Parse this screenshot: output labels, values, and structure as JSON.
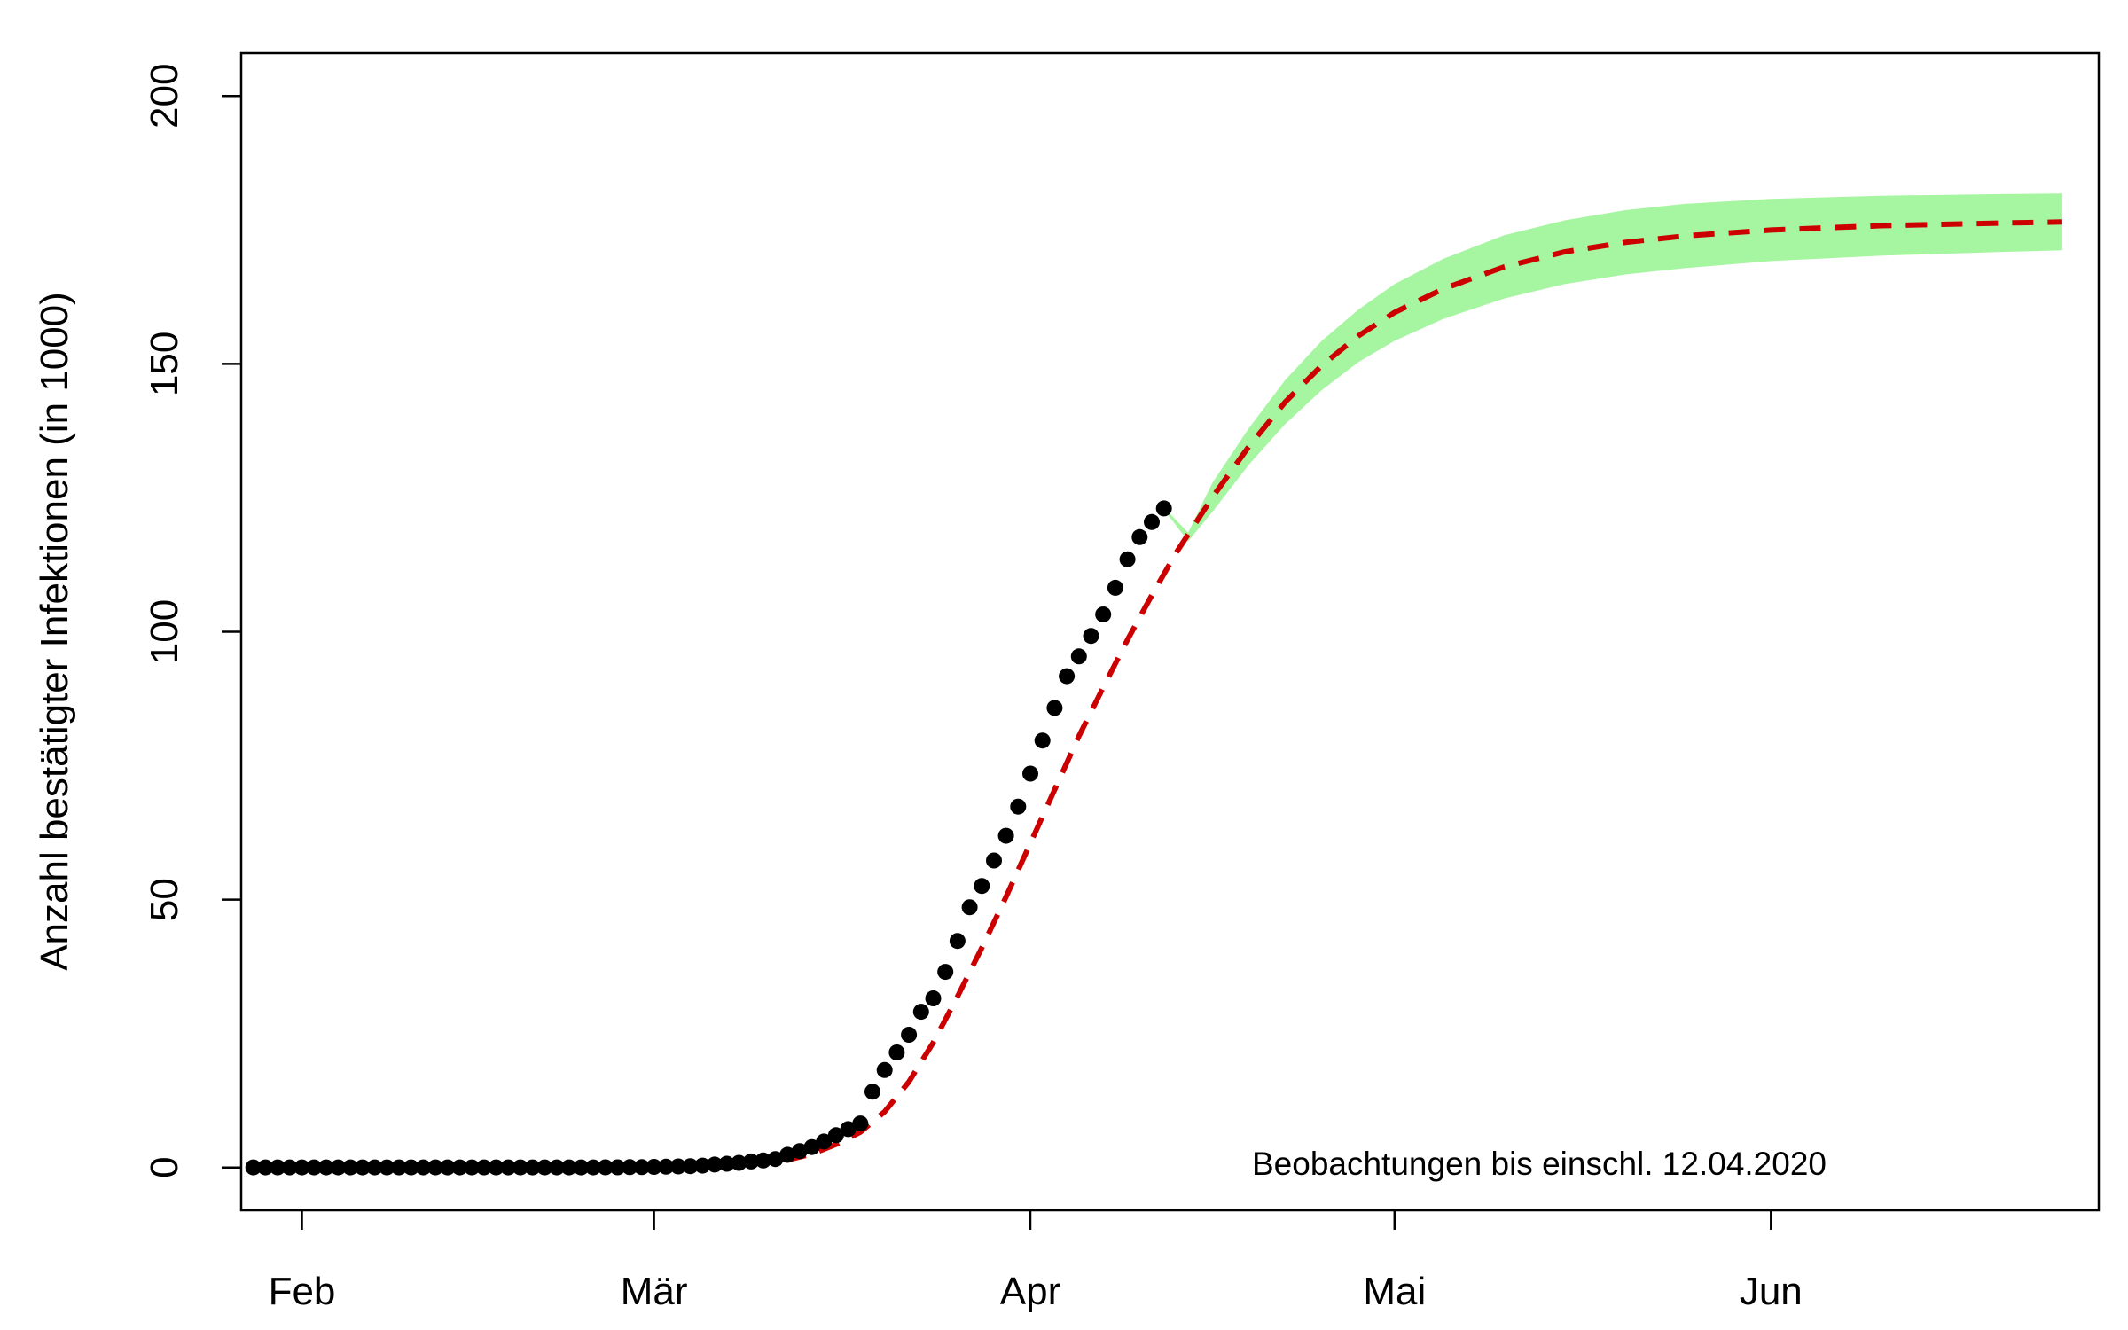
{
  "chart_data": {
    "type": "line",
    "title": "",
    "xlabel": "",
    "ylabel": "Anzahl bestätigter Infektionen (in 1000)",
    "x_unit": "date (2020)",
    "xlim": [
      "2020-01-27",
      "2020-06-28"
    ],
    "ylim": [
      -8,
      208
    ],
    "x_ticks": [
      {
        "date": "2020-02-01",
        "label": "Feb"
      },
      {
        "date": "2020-03-01",
        "label": "Mär"
      },
      {
        "date": "2020-04-01",
        "label": "Apr"
      },
      {
        "date": "2020-05-01",
        "label": "Mai"
      },
      {
        "date": "2020-06-01",
        "label": "Jun"
      }
    ],
    "y_ticks": [
      0,
      50,
      100,
      150,
      200
    ],
    "grid": false,
    "legend": "none",
    "annotation": "Beobachtungen bis einschl. 12.04.2020",
    "series": [
      {
        "role": "observed",
        "style": "points",
        "color": "#000000",
        "x": [
          "2020-01-28",
          "2020-01-29",
          "2020-01-30",
          "2020-01-31",
          "2020-02-01",
          "2020-02-02",
          "2020-02-03",
          "2020-02-04",
          "2020-02-05",
          "2020-02-06",
          "2020-02-07",
          "2020-02-08",
          "2020-02-09",
          "2020-02-10",
          "2020-02-11",
          "2020-02-12",
          "2020-02-13",
          "2020-02-14",
          "2020-02-15",
          "2020-02-16",
          "2020-02-17",
          "2020-02-18",
          "2020-02-19",
          "2020-02-20",
          "2020-02-21",
          "2020-02-22",
          "2020-02-23",
          "2020-02-24",
          "2020-02-25",
          "2020-02-26",
          "2020-02-27",
          "2020-02-28",
          "2020-02-29",
          "2020-03-01",
          "2020-03-02",
          "2020-03-03",
          "2020-03-04",
          "2020-03-05",
          "2020-03-06",
          "2020-03-07",
          "2020-03-08",
          "2020-03-09",
          "2020-03-10",
          "2020-03-11",
          "2020-03-12",
          "2020-03-13",
          "2020-03-14",
          "2020-03-15",
          "2020-03-16",
          "2020-03-17",
          "2020-03-18",
          "2020-03-19",
          "2020-03-20",
          "2020-03-21",
          "2020-03-22",
          "2020-03-23",
          "2020-03-24",
          "2020-03-25",
          "2020-03-26",
          "2020-03-27",
          "2020-03-28",
          "2020-03-29",
          "2020-03-30",
          "2020-03-31",
          "2020-04-01",
          "2020-04-02",
          "2020-04-03",
          "2020-04-04",
          "2020-04-05",
          "2020-04-06",
          "2020-04-07",
          "2020-04-08",
          "2020-04-09",
          "2020-04-10",
          "2020-04-11",
          "2020-04-12"
        ],
        "y": [
          0.004,
          0.004,
          0.005,
          0.007,
          0.008,
          0.01,
          0.012,
          0.012,
          0.012,
          0.013,
          0.013,
          0.014,
          0.014,
          0.014,
          0.016,
          0.016,
          0.016,
          0.016,
          0.016,
          0.016,
          0.016,
          0.016,
          0.016,
          0.016,
          0.016,
          0.016,
          0.016,
          0.016,
          0.018,
          0.021,
          0.026,
          0.053,
          0.066,
          0.117,
          0.15,
          0.188,
          0.24,
          0.349,
          0.534,
          0.684,
          0.847,
          1.112,
          1.296,
          1.567,
          2.369,
          3.062,
          3.795,
          4.838,
          6.012,
          7.156,
          8.198,
          14.138,
          18.187,
          21.463,
          24.774,
          29.056,
          31.554,
          36.508,
          42.288,
          48.582,
          52.547,
          57.298,
          61.913,
          67.366,
          73.522,
          79.696,
          85.778,
          91.714,
          95.391,
          99.225,
          103.228,
          108.202,
          113.525,
          117.658,
          120.479,
          123.016
        ]
      },
      {
        "role": "fitted",
        "style": "dashed",
        "color": "#cc0000",
        "x": [
          "2020-01-28",
          "2020-02-15",
          "2020-03-01",
          "2020-03-05",
          "2020-03-10",
          "2020-03-12",
          "2020-03-14",
          "2020-03-16",
          "2020-03-18",
          "2020-03-20",
          "2020-03-22",
          "2020-03-24",
          "2020-03-26",
          "2020-03-28",
          "2020-03-30",
          "2020-04-01",
          "2020-04-03",
          "2020-04-05",
          "2020-04-07",
          "2020-04-09",
          "2020-04-11",
          "2020-04-13",
          "2020-04-16",
          "2020-04-19",
          "2020-04-22",
          "2020-04-25",
          "2020-04-28",
          "2020-05-01",
          "2020-05-05",
          "2020-05-10",
          "2020-05-15",
          "2020-05-20",
          "2020-05-25",
          "2020-06-01",
          "2020-06-10",
          "2020-06-20",
          "2020-06-25"
        ],
        "y": [
          0.0,
          0.0,
          0.1,
          0.3,
          0.8,
          1.4,
          2.5,
          4.3,
          6.6,
          10.4,
          16.0,
          23.3,
          31.9,
          41.0,
          50.5,
          60.5,
          70.5,
          80.5,
          89.6,
          98.5,
          106.8,
          114.7,
          125.1,
          134.6,
          142.9,
          149.7,
          155.2,
          159.6,
          164.0,
          168.1,
          170.9,
          172.7,
          173.9,
          175.0,
          175.8,
          176.3,
          176.5
        ]
      },
      {
        "role": "prediction band",
        "style": "band",
        "color": "#a6f5a0",
        "x": [
          "2020-04-12",
          "2020-04-14",
          "2020-04-16",
          "2020-04-19",
          "2020-04-22",
          "2020-04-25",
          "2020-04-28",
          "2020-05-01",
          "2020-05-05",
          "2020-05-10",
          "2020-05-15",
          "2020-05-20",
          "2020-05-25",
          "2020-06-01",
          "2020-06-10",
          "2020-06-20",
          "2020-06-25"
        ],
        "upper": [
          123.2,
          118.5,
          127.8,
          138.0,
          147.0,
          154.3,
          160.1,
          164.9,
          169.6,
          174.0,
          176.8,
          178.7,
          179.9,
          180.8,
          181.4,
          181.7,
          181.8
        ],
        "lower": [
          122.8,
          116.9,
          122.4,
          131.2,
          138.8,
          145.1,
          150.3,
          154.3,
          158.4,
          162.2,
          164.9,
          166.7,
          167.9,
          169.2,
          170.2,
          170.9,
          171.2
        ]
      }
    ]
  }
}
